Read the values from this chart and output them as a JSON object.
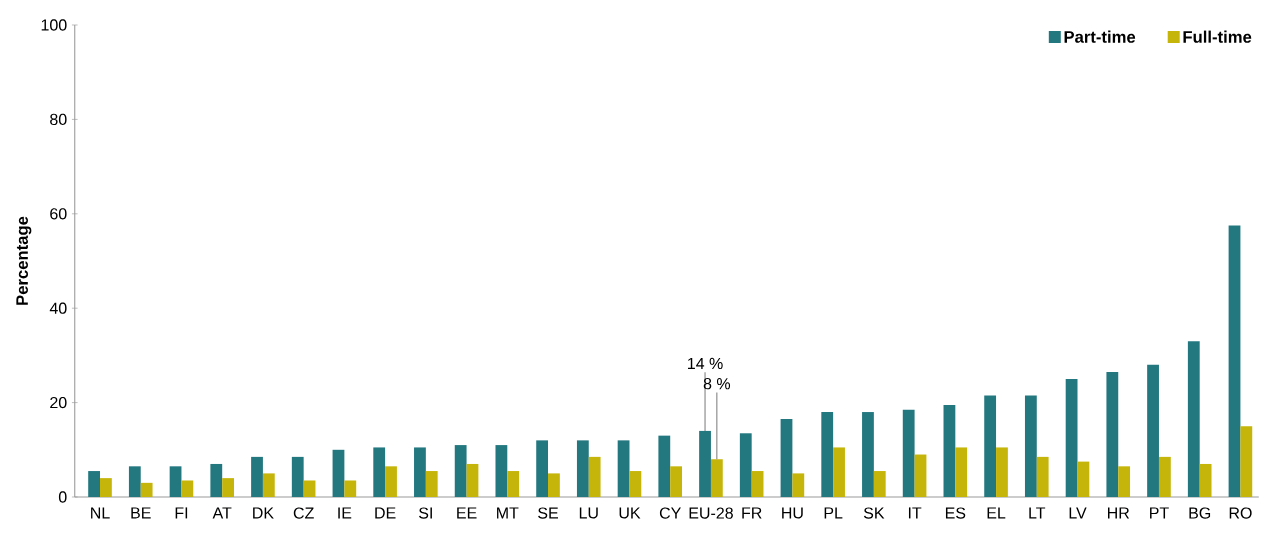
{
  "chart_data": {
    "type": "bar",
    "ylabel": "Percentage",
    "categories": [
      "NL",
      "BE",
      "FI",
      "AT",
      "DK",
      "CZ",
      "IE",
      "DE",
      "SI",
      "EE",
      "MT",
      "SE",
      "LU",
      "UK",
      "CY",
      "EU-28",
      "FR",
      "HU",
      "PL",
      "SK",
      "IT",
      "ES",
      "EL",
      "LT",
      "LV",
      "HR",
      "PT",
      "BG",
      "RO"
    ],
    "series": [
      {
        "name": "Part-time",
        "color": "#237880",
        "values": [
          5.5,
          6.5,
          6.5,
          7,
          8.5,
          8.5,
          10,
          10.5,
          10.5,
          11,
          11,
          12,
          12,
          12,
          13,
          14,
          13.5,
          16.5,
          18,
          18,
          18.5,
          19.5,
          21.5,
          21.5,
          25,
          26.5,
          28,
          33,
          57.5
        ],
        "value_labels": [
          null,
          null,
          null,
          null,
          null,
          null,
          null,
          null,
          null,
          null,
          null,
          null,
          null,
          null,
          null,
          "14 %",
          null,
          null,
          null,
          null,
          null,
          null,
          null,
          null,
          null,
          null,
          null,
          null,
          null
        ]
      },
      {
        "name": "Full-time",
        "color": "#c5b50a",
        "values": [
          4,
          3,
          3.5,
          4,
          5,
          3.5,
          3.5,
          6.5,
          5.5,
          7,
          5.5,
          5,
          8.5,
          5.5,
          6.5,
          8,
          5.5,
          5,
          10.5,
          5.5,
          9,
          10.5,
          10.5,
          8.5,
          7.5,
          6.5,
          8.5,
          7,
          15
        ],
        "value_labels": [
          null,
          null,
          null,
          null,
          null,
          null,
          null,
          null,
          null,
          null,
          null,
          null,
          null,
          null,
          null,
          "8 %",
          null,
          null,
          null,
          null,
          null,
          null,
          null,
          null,
          null,
          null,
          null,
          null,
          null
        ]
      }
    ],
    "ylim": [
      0,
      100
    ],
    "yticks": [
      0,
      20,
      40,
      60,
      80,
      100
    ],
    "legend": "top right",
    "grid": false
  }
}
